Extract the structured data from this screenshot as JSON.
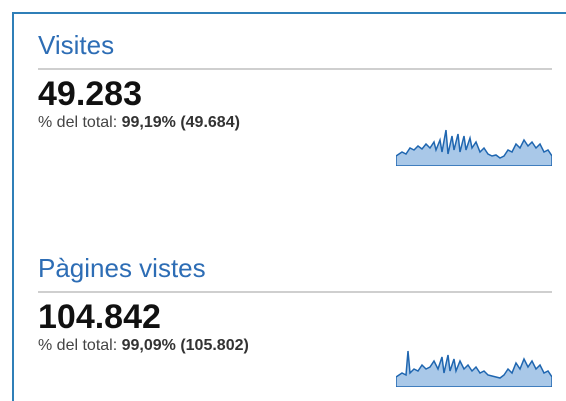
{
  "metrics": [
    {
      "label": "Visites",
      "value": "49.283",
      "share_label": "% del total:",
      "share": "99,19% (49.684)"
    },
    {
      "label": "Pàgines vistes",
      "value": "104.842",
      "share_label": "% del total:",
      "share": "99,09% (105.802)"
    }
  ]
}
